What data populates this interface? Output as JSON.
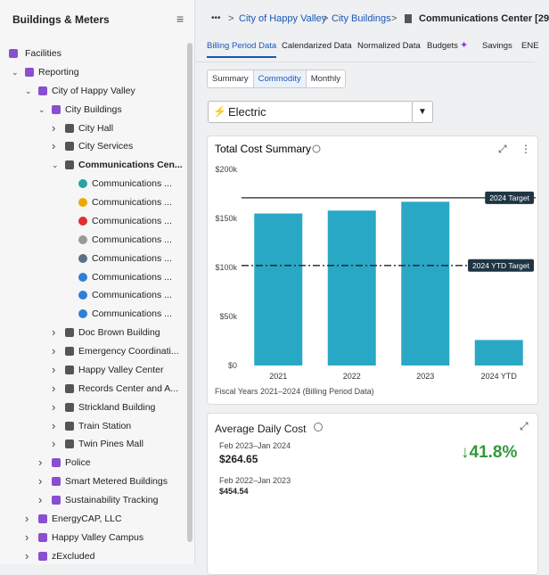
{
  "sidebar": {
    "title": "Buildings & Meters",
    "tree": [
      {
        "label": "Facilities",
        "children": [
          {
            "label": "Reporting",
            "expanded": true,
            "children": [
              {
                "label": "City of Happy Valley",
                "expanded": true,
                "children": [
                  {
                    "label": "City Buildings",
                    "expanded": true,
                    "children": [
                      {
                        "label": "City Hall",
                        "expanded": false
                      },
                      {
                        "label": "City Services",
                        "expanded": false
                      },
                      {
                        "label": "Communications Cen...",
                        "expanded": true,
                        "bold": true,
                        "children": [
                          {
                            "label": "Communications ..."
                          },
                          {
                            "label": "Communications ..."
                          },
                          {
                            "label": "Communications ..."
                          },
                          {
                            "label": "Communications ..."
                          },
                          {
                            "label": "Communications ..."
                          },
                          {
                            "label": "Communications ..."
                          },
                          {
                            "label": "Communications ..."
                          },
                          {
                            "label": "Communications ..."
                          }
                        ]
                      },
                      {
                        "label": "Doc Brown Building",
                        "expanded": false
                      },
                      {
                        "label": "Emergency Coordinati...",
                        "expanded": false
                      },
                      {
                        "label": "Happy Valley Center",
                        "expanded": false
                      },
                      {
                        "label": "Records Center and A...",
                        "expanded": false
                      },
                      {
                        "label": "Strickland Building",
                        "expanded": false
                      },
                      {
                        "label": "Train Station",
                        "expanded": false
                      },
                      {
                        "label": "Twin Pines Mall",
                        "expanded": false
                      }
                    ]
                  },
                  {
                    "label": "Police",
                    "expanded": false
                  },
                  {
                    "label": "Smart Metered Buildings",
                    "expanded": false
                  },
                  {
                    "label": "Sustainability Tracking",
                    "expanded": false
                  }
                ]
              },
              {
                "label": "EnergyCAP, LLC",
                "expanded": false
              },
              {
                "label": "Happy Valley Campus",
                "expanded": false
              },
              {
                "label": "zExcluded",
                "expanded": false
              }
            ]
          }
        ]
      }
    ]
  },
  "breadcrumb": [
    "City of Happy Valley",
    "City Buildings",
    "Communications Center [29"
  ],
  "tabs": [
    {
      "label": "Billing Period Data",
      "active": true
    },
    {
      "label": "Calendarized Data"
    },
    {
      "label": "Normalized Data"
    },
    {
      "label": "Budgets"
    },
    {
      "label": "Savings"
    },
    {
      "label": "ENE"
    }
  ],
  "subtabs": [
    {
      "label": "Summary"
    },
    {
      "label": "Commodity",
      "active": true
    },
    {
      "label": "Monthly"
    }
  ],
  "commodity_select": "Electric",
  "chart_data": {
    "type": "bar",
    "title": "Total Cost Summary",
    "note": "Fiscal Years 2021–2024 (Billing Period Data)",
    "categories": [
      "2021",
      "2022",
      "2023",
      "2024 YTD"
    ],
    "values": [
      155000,
      158000,
      167000,
      26000
    ],
    "color": "#29a8c6",
    "ylim": [
      0,
      200000
    ],
    "yticks": [
      {
        "value": 0,
        "label": "$0"
      },
      {
        "value": 50000,
        "label": "$50k"
      },
      {
        "value": 100000,
        "label": "$100k"
      },
      {
        "value": 150000,
        "label": "$150k"
      },
      {
        "value": 200000,
        "label": "$200k"
      }
    ],
    "reference_lines": [
      {
        "label": "2024 Target",
        "value": 171000,
        "style": "solid"
      },
      {
        "label": "2024 YTD Target",
        "value": 102000,
        "style": "dashdot"
      }
    ]
  },
  "average_daily_cost": {
    "title": "Average Daily Cost",
    "current_period": "Feb 2023–Jan 2024",
    "current_value": "$264.65",
    "change": "↓41.8%",
    "previous_period": "Feb 2022–Jan 2023",
    "previous_value": "$454.54"
  }
}
